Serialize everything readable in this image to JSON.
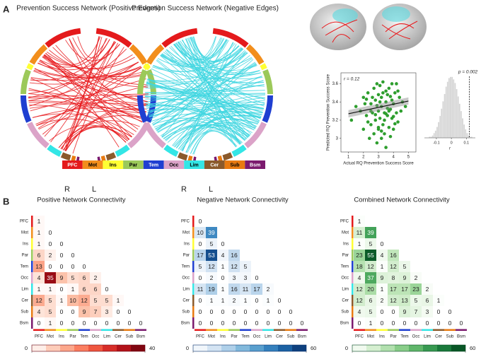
{
  "figure": {
    "panel_a_label": "A",
    "panel_b_label": "B",
    "chords": [
      {
        "title": "Prevention Success Network (Positive Edges)",
        "edge_color": "#e8191c",
        "left_label": "R",
        "right_label": "L"
      },
      {
        "title": "Prevention Success Network (Negative Edges)",
        "edge_color": "#3fd6e0",
        "left_label": "R",
        "right_label": "L"
      }
    ],
    "regions": [
      {
        "label": "PFC",
        "color": "#e41a1c"
      },
      {
        "label": "Mot",
        "color": "#f28e1c"
      },
      {
        "label": "Ins",
        "color": "#ffff33"
      },
      {
        "label": "Par",
        "color": "#9cc95a"
      },
      {
        "label": "Tem",
        "color": "#1f3fd1"
      },
      {
        "label": "Occ",
        "color": "#dba3c8"
      },
      {
        "label": "Lim",
        "color": "#33e6e6"
      },
      {
        "label": "Cer",
        "color": "#8b5a2b"
      },
      {
        "label": "Sub",
        "color": "#e87a10"
      },
      {
        "label": "Bsm",
        "color": "#7b1a6e"
      }
    ]
  },
  "chart_data": [
    {
      "type": "scatter",
      "xlabel": "Actual RQ Prevention Success Score",
      "ylabel": "Predicted RQ Prevention Success Score",
      "annotation": "r = 0.12",
      "color": "#2e9e2e",
      "xlim": [
        0.5,
        5.5
      ],
      "xticks": [
        1,
        2,
        3,
        4,
        5
      ],
      "ylim": [
        2.85,
        3.72
      ],
      "yticks": [
        3,
        3.2,
        3.4,
        3.6
      ],
      "x": [
        1.2,
        1.5,
        1.8,
        2.0,
        2.0,
        2.2,
        2.3,
        2.4,
        2.5,
        2.5,
        2.6,
        2.7,
        2.7,
        2.8,
        2.8,
        2.9,
        2.9,
        3.0,
        3.0,
        3.0,
        3.1,
        3.1,
        3.2,
        3.2,
        3.2,
        3.3,
        3.3,
        3.4,
        3.4,
        3.5,
        3.5,
        3.5,
        3.6,
        3.6,
        3.7,
        3.7,
        3.8,
        3.8,
        3.9,
        3.9,
        4.0,
        4.0,
        4.1,
        4.2,
        4.2,
        4.3,
        4.4,
        4.5,
        4.6,
        4.8,
        2.1,
        2.3,
        2.6,
        2.8,
        3.0,
        3.1,
        3.3,
        3.4,
        3.6,
        3.8,
        4.0,
        4.3,
        2.5,
        2.9,
        3.2,
        3.5,
        3.9,
        4.1,
        2.2,
        3.7
      ],
      "values": [
        3.2,
        3.35,
        3.3,
        3.1,
        3.45,
        3.25,
        3.5,
        3.0,
        3.38,
        3.15,
        3.28,
        3.55,
        3.05,
        3.42,
        3.2,
        3.6,
        2.95,
        3.3,
        3.48,
        3.1,
        3.22,
        3.58,
        3.35,
        3.0,
        3.45,
        3.15,
        3.62,
        3.28,
        3.05,
        3.4,
        3.52,
        2.9,
        3.25,
        3.48,
        3.12,
        3.55,
        3.32,
        3.02,
        3.42,
        3.22,
        3.38,
        3.1,
        3.5,
        3.28,
        3.6,
        3.18,
        3.45,
        3.3,
        3.4,
        3.35,
        3.38,
        3.18,
        3.45,
        3.26,
        3.12,
        3.4,
        3.5,
        3.2,
        3.33,
        3.46,
        3.24,
        3.52,
        3.3,
        3.36,
        3.08,
        3.27,
        3.6,
        3.16,
        3.43,
        3.3
      ],
      "fit": {
        "x": [
          1,
          5
        ],
        "y": [
          3.27,
          3.41
        ],
        "lower": [
          3.23,
          3.37
        ],
        "upper": [
          3.31,
          3.45
        ]
      }
    },
    {
      "type": "histogram",
      "xlabel": "r",
      "annotation": "p = 0.002",
      "color": "#d4d4d4",
      "observed": 0.12,
      "bins": [
        -0.15,
        -0.14,
        -0.13,
        -0.12,
        -0.11,
        -0.1,
        -0.09,
        -0.08,
        -0.07,
        -0.06,
        -0.05,
        -0.04,
        -0.03,
        -0.02,
        -0.01,
        0,
        0.01,
        0.02,
        0.03,
        0.04,
        0.05,
        0.06,
        0.07,
        0.08,
        0.09,
        0.1,
        0.11,
        0.12,
        0.13,
        0.14,
        0.15
      ],
      "values": [
        1,
        1,
        2,
        4,
        6,
        9,
        13,
        18,
        24,
        30,
        36,
        42,
        46,
        49,
        50,
        50,
        48,
        45,
        40,
        34,
        28,
        22,
        16,
        11,
        7,
        4,
        2,
        1,
        1,
        0
      ],
      "xlim": [
        -0.18,
        0.16
      ],
      "xticks": [
        -0.1,
        0,
        0.1
      ],
      "ylim": [
        0,
        55
      ]
    },
    {
      "type": "heatmap",
      "title": "Positive Network Connectivity",
      "rows": [
        "PFC",
        "Mot",
        "Ins",
        "Par",
        "Tem",
        "Occ",
        "Lim",
        "Cer",
        "Sub",
        "Bsm"
      ],
      "columns": [
        "PFC",
        "Mot",
        "Ins",
        "Par",
        "Tem",
        "Occ",
        "Lim",
        "Cer",
        "Sub",
        "Bsm"
      ],
      "values": [
        [
          1
        ],
        [
          1,
          0
        ],
        [
          1,
          0,
          0
        ],
        [
          6,
          2,
          0,
          0
        ],
        [
          13,
          0,
          0,
          0,
          0
        ],
        [
          4,
          35,
          9,
          5,
          6,
          2
        ],
        [
          1,
          1,
          0,
          1,
          6,
          6,
          0
        ],
        [
          12,
          5,
          1,
          10,
          12,
          5,
          5,
          1
        ],
        [
          4,
          5,
          0,
          0,
          9,
          7,
          3,
          0,
          0
        ],
        [
          0,
          1,
          0,
          0,
          0,
          0,
          0,
          0,
          0,
          0
        ]
      ],
      "colormap": [
        "#ffffff",
        "#fcbba1",
        "#fb6a4a",
        "#cb181d",
        "#67000d"
      ],
      "clim": [
        0,
        40
      ],
      "cticks": [
        0,
        40
      ]
    },
    {
      "type": "heatmap",
      "title": "Negative Network Connectivity",
      "rows": [
        "PFC",
        "Mot",
        "Ins",
        "Par",
        "Tem",
        "Occ",
        "Lim",
        "Cer",
        "Sub",
        "Bsm"
      ],
      "columns": [
        "PFC",
        "Mot",
        "Ins",
        "Par",
        "Tem",
        "Occ",
        "Lim",
        "Cer",
        "Sub",
        "Bsm"
      ],
      "values": [
        [
          0
        ],
        [
          10,
          39
        ],
        [
          0,
          5,
          0
        ],
        [
          17,
          53,
          4,
          16
        ],
        [
          5,
          12,
          1,
          12,
          5
        ],
        [
          0,
          2,
          0,
          3,
          3,
          0
        ],
        [
          11,
          19,
          1,
          16,
          11,
          17,
          2
        ],
        [
          0,
          1,
          1,
          2,
          1,
          0,
          1,
          0
        ],
        [
          0,
          0,
          0,
          0,
          0,
          0,
          0,
          0,
          0
        ],
        [
          0,
          0,
          0,
          0,
          0,
          0,
          0,
          0,
          0,
          0
        ]
      ],
      "colormap": [
        "#ffffff",
        "#c6dbef",
        "#6baed6",
        "#2171b5",
        "#08306b"
      ],
      "clim": [
        0,
        60
      ],
      "cticks": [
        0,
        60
      ]
    },
    {
      "type": "heatmap",
      "title": "Combined Network Connectivity",
      "rows": [
        "PFC",
        "Mot",
        "Ins",
        "Par",
        "Tem",
        "Occ",
        "Lim",
        "Cer",
        "Sub",
        "Bsm"
      ],
      "columns": [
        "PFC",
        "Mot",
        "Ins",
        "Par",
        "Tem",
        "Occ",
        "Lim",
        "Cer",
        "Sub",
        "Bsm"
      ],
      "values": [
        [
          1
        ],
        [
          11,
          39
        ],
        [
          1,
          5,
          0
        ],
        [
          23,
          55,
          4,
          16
        ],
        [
          18,
          12,
          1,
          12,
          5
        ],
        [
          4,
          37,
          9,
          8,
          9,
          2
        ],
        [
          12,
          20,
          1,
          17,
          17,
          23,
          2
        ],
        [
          12,
          6,
          2,
          12,
          13,
          5,
          6,
          1
        ],
        [
          4,
          5,
          0,
          0,
          9,
          7,
          3,
          0,
          0
        ],
        [
          0,
          1,
          0,
          0,
          0,
          0,
          0,
          0,
          0,
          0
        ]
      ],
      "colormap": [
        "#ffffff",
        "#c7e9c0",
        "#74c476",
        "#238b45",
        "#00441b"
      ],
      "clim": [
        0,
        60
      ],
      "cticks": [
        0,
        60
      ]
    }
  ]
}
